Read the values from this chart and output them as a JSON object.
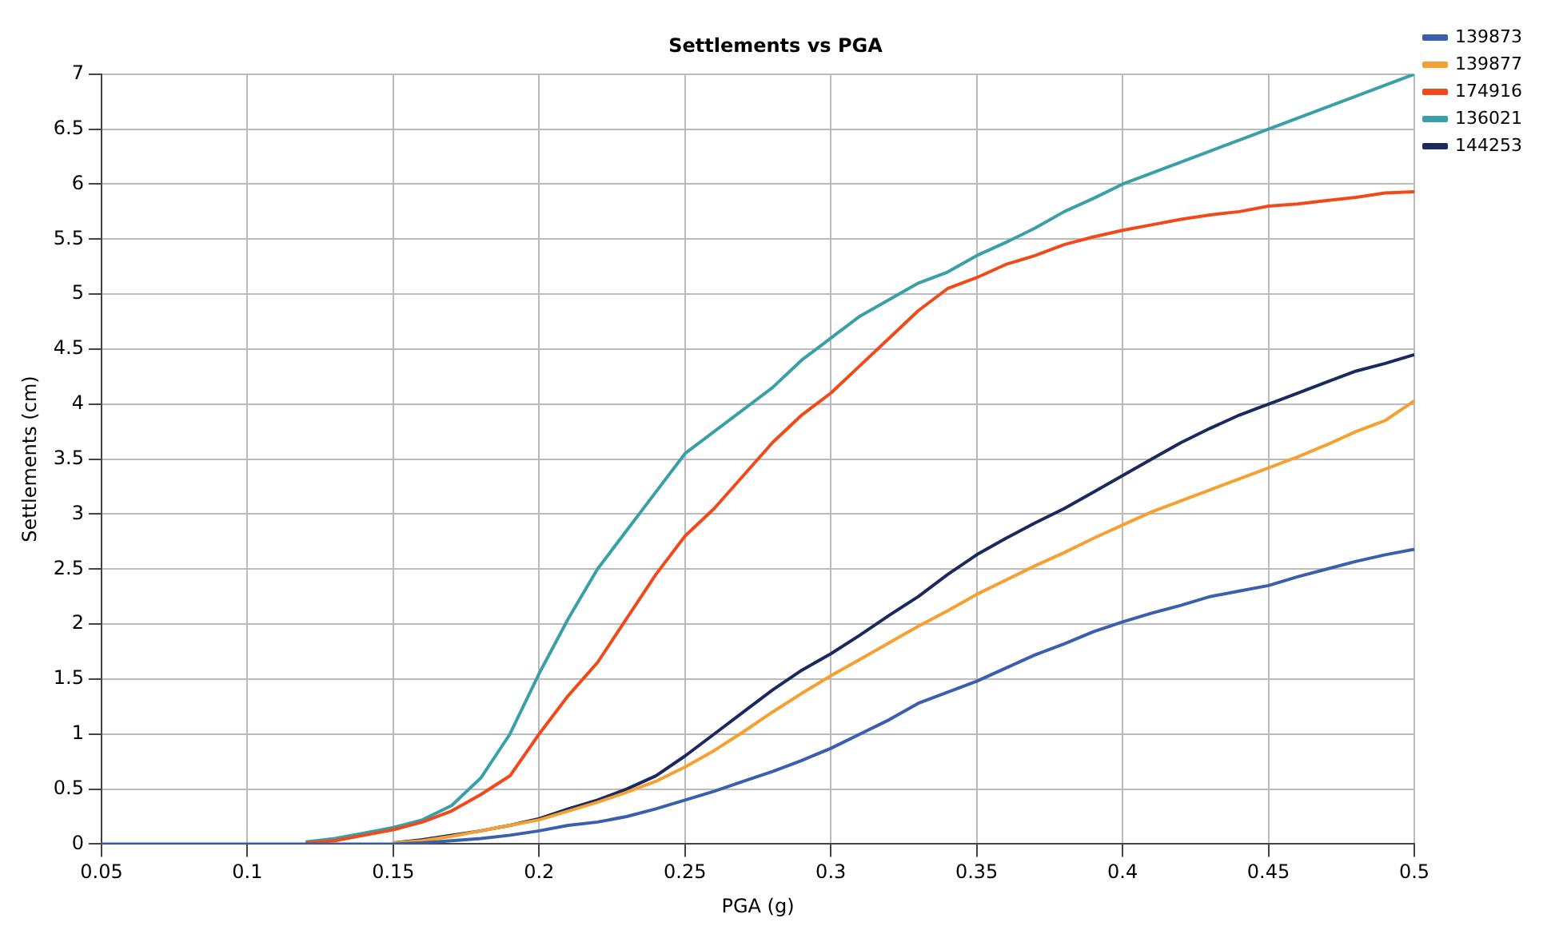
{
  "chart_data": {
    "type": "line",
    "title": "Settlements vs PGA",
    "xlabel": "PGA (g)",
    "ylabel": "Settlements (cm)",
    "x": [
      0.05,
      0.1,
      0.11,
      0.12,
      0.13,
      0.14,
      0.15,
      0.16,
      0.17,
      0.18,
      0.19,
      0.2,
      0.21,
      0.22,
      0.23,
      0.24,
      0.25,
      0.26,
      0.27,
      0.28,
      0.29,
      0.3,
      0.31,
      0.32,
      0.33,
      0.34,
      0.35,
      0.36,
      0.37,
      0.38,
      0.39,
      0.4,
      0.41,
      0.42,
      0.43,
      0.44,
      0.45,
      0.46,
      0.47,
      0.48,
      0.49,
      0.5
    ],
    "series": [
      {
        "name": "139873",
        "color": "#3a5fad",
        "values": [
          0,
          0,
          0,
          0,
          0,
          0,
          0,
          0.01,
          0.03,
          0.05,
          0.08,
          0.12,
          0.17,
          0.2,
          0.25,
          0.32,
          0.4,
          0.48,
          0.57,
          0.66,
          0.76,
          0.87,
          1.0,
          1.13,
          1.28,
          1.38,
          1.48,
          1.6,
          1.72,
          1.82,
          1.93,
          2.02,
          2.1,
          2.17,
          2.25,
          2.3,
          2.35,
          2.43,
          2.5,
          2.57,
          2.63,
          2.68
        ]
      },
      {
        "name": "139877",
        "color": "#f5a030",
        "values": [
          null,
          null,
          null,
          null,
          null,
          null,
          0.01,
          0.03,
          0.07,
          0.12,
          0.17,
          0.22,
          0.3,
          0.38,
          0.47,
          0.57,
          0.7,
          0.85,
          1.02,
          1.2,
          1.37,
          1.53,
          1.68,
          1.83,
          1.98,
          2.12,
          2.27,
          2.4,
          2.53,
          2.65,
          2.78,
          2.9,
          3.02,
          3.12,
          3.22,
          3.32,
          3.42,
          3.52,
          3.63,
          3.75,
          3.85,
          4.03
        ]
      },
      {
        "name": "174916",
        "color": "#f04a1a",
        "values": [
          null,
          null,
          null,
          0.01,
          0.03,
          0.08,
          0.13,
          0.2,
          0.3,
          0.45,
          0.62,
          1.0,
          1.35,
          1.65,
          2.05,
          2.45,
          2.8,
          3.05,
          3.35,
          3.65,
          3.9,
          4.1,
          4.35,
          4.6,
          4.85,
          5.05,
          5.15,
          5.27,
          5.35,
          5.45,
          5.52,
          5.58,
          5.63,
          5.68,
          5.72,
          5.75,
          5.8,
          5.82,
          5.85,
          5.88,
          5.92,
          5.93
        ]
      },
      {
        "name": "136021",
        "color": "#3aa0a8",
        "values": [
          null,
          null,
          null,
          0.02,
          0.05,
          0.1,
          0.15,
          0.22,
          0.35,
          0.6,
          1.0,
          1.55,
          2.05,
          2.5,
          2.85,
          3.2,
          3.55,
          3.75,
          3.95,
          4.15,
          4.4,
          4.6,
          4.8,
          4.95,
          5.1,
          5.2,
          5.35,
          5.47,
          5.6,
          5.75,
          5.87,
          6.0,
          6.1,
          6.2,
          6.3,
          6.4,
          6.5,
          6.6,
          6.7,
          6.8,
          6.9,
          7.0
        ]
      },
      {
        "name": "144253",
        "color": "#1a2a5e",
        "values": [
          null,
          null,
          null,
          null,
          null,
          null,
          0.01,
          0.04,
          0.08,
          0.12,
          0.17,
          0.23,
          0.32,
          0.4,
          0.5,
          0.62,
          0.8,
          1.0,
          1.2,
          1.4,
          1.58,
          1.73,
          1.9,
          2.08,
          2.25,
          2.45,
          2.63,
          2.78,
          2.92,
          3.05,
          3.2,
          3.35,
          3.5,
          3.65,
          3.78,
          3.9,
          4.0,
          4.1,
          4.2,
          4.3,
          4.37,
          4.45
        ]
      }
    ],
    "xlim": [
      0.05,
      0.5
    ],
    "xticks": [
      0.05,
      0.1,
      0.15,
      0.2,
      0.25,
      0.3,
      0.35,
      0.4,
      0.45,
      0.5
    ],
    "ylim": [
      0,
      7
    ],
    "yticks": [
      0,
      0.5,
      1,
      1.5,
      2,
      2.5,
      3,
      3.5,
      4,
      4.5,
      5,
      5.5,
      6,
      6.5,
      7
    ],
    "grid": true,
    "legend": "top right",
    "marker": "none",
    "line_style": "solid"
  }
}
